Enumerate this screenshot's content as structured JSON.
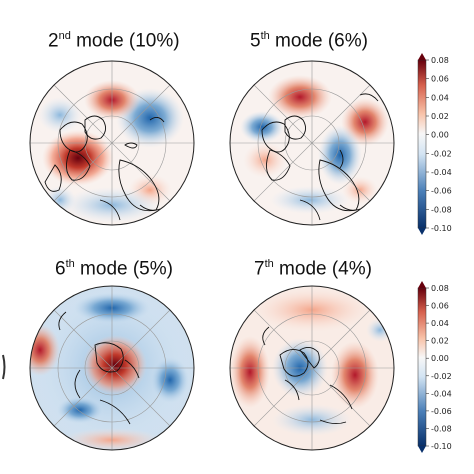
{
  "panels": [
    {
      "ordinal": "2",
      "suffix": "nd",
      "rest": " mode (10%)"
    },
    {
      "ordinal": "5",
      "suffix": "th",
      "rest": " mode (6%)"
    },
    {
      "ordinal": "6",
      "suffix": "th",
      "rest": " mode (5%)"
    },
    {
      "ordinal": "7",
      "suffix": "th",
      "rest": " mode (4%)"
    }
  ],
  "colorbar": {
    "ticks": [
      "0.08",
      "0.06",
      "0.04",
      "0.02",
      "0.00",
      "-0.02",
      "-0.04",
      "-0.06",
      "-0.08",
      "-0.10"
    ],
    "range": [
      -0.1,
      0.08
    ],
    "colors": {
      "neg_dark": "#08306b",
      "neg": "#4a7fb8",
      "white": "#f7f7f7",
      "pos": "#e06b52",
      "pos_dark": "#67000d"
    }
  }
}
